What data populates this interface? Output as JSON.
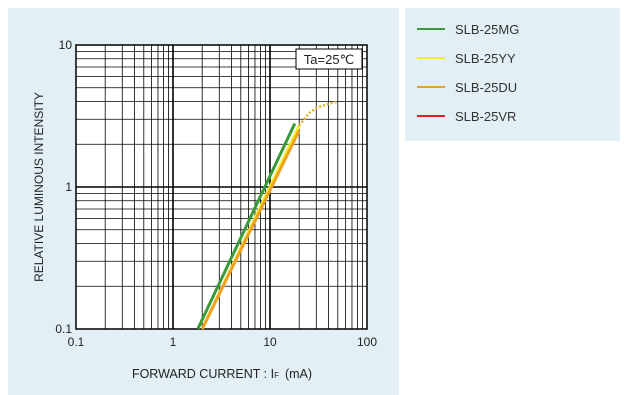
{
  "chart_data": {
    "type": "line",
    "x_scale": "log",
    "y_scale": "log",
    "xlim": [
      0.1,
      100
    ],
    "ylim": [
      0.1,
      10
    ],
    "xlabel": "FORWARD  CURRENT : I",
    "xlabel_sub": "F",
    "xlabel_unit": "(mA)",
    "ylabel": "RELATIVE LUMINOUS INTENSITY",
    "x_ticks": [
      {
        "v": 0.1,
        "label": "0.1"
      },
      {
        "v": 1,
        "label": "1"
      },
      {
        "v": 10,
        "label": "10"
      },
      {
        "v": 100,
        "label": "100"
      }
    ],
    "y_ticks": [
      {
        "v": 0.1,
        "label": "0.1"
      },
      {
        "v": 1,
        "label": "1"
      },
      {
        "v": 10,
        "label": "10"
      }
    ],
    "annotation": "Ta=25℃",
    "grid": true,
    "legend_position": "outside-right",
    "series": [
      {
        "name": "SLB-25MG",
        "color": "#3a9a3a",
        "x": [
          1.8,
          18
        ],
        "y": [
          0.1,
          2.8
        ]
      },
      {
        "name": "SLB-25YY",
        "color": "#f2ee2a",
        "x": [
          2.0,
          20
        ],
        "y": [
          0.1,
          2.7
        ]
      },
      {
        "name": "SLB-25DU",
        "color": "#f0a020",
        "x": [
          2.0,
          20
        ],
        "y": [
          0.1,
          2.5
        ]
      },
      {
        "name": "SLB-25VR",
        "color": "#e02020",
        "x": [],
        "y": []
      }
    ],
    "saturation": {
      "x": [
        20,
        25,
        30,
        40,
        50
      ],
      "y": [
        2.7,
        3.3,
        3.6,
        3.85,
        4.0
      ]
    }
  }
}
